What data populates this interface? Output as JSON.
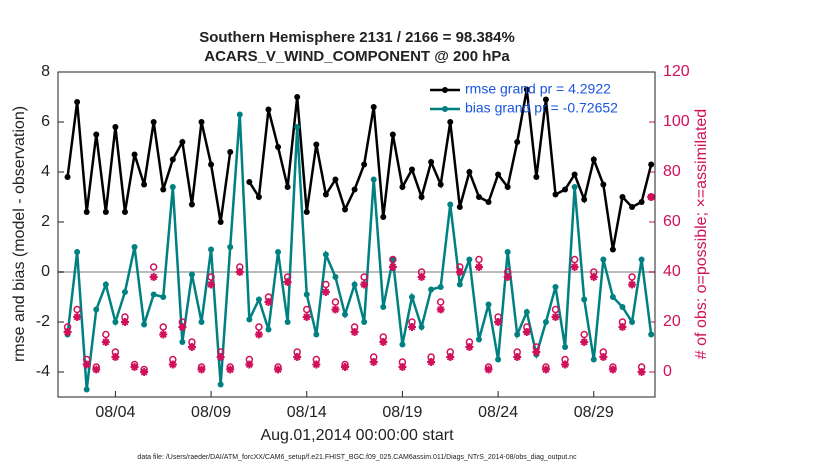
{
  "chart_data": {
    "type": "line",
    "title": "Southern Hemisphere 2131 / 2166 = 98.384%",
    "subtitle": "ACARS_V_WIND_COMPONENT @ 200 hPa",
    "xlabel": "Aug.01,2014 00:00:00 start",
    "ylabel": "rmse and bias (model - observation)",
    "y2label": "# of obs: o=possible; ×=assimilated",
    "footnote": "data file: /Users/raeder/DAI/ATM_forcXX/CAM6_setup/f.e21.FHIST_BGC.f09_025.CAM6assim.011/Diags_NTrS_2014-08/obs_diag_output.nc",
    "x": [
      0.5,
      1,
      1.5,
      2,
      2.5,
      3,
      3.5,
      4,
      4.5,
      5,
      5.5,
      6,
      6.5,
      7,
      7.5,
      8,
      8.5,
      9,
      9.5,
      10,
      10.5,
      11,
      11.5,
      12,
      12.5,
      13,
      13.5,
      14,
      14.5,
      15,
      15.5,
      16,
      16.5,
      17,
      17.5,
      18,
      18.5,
      19,
      19.5,
      20,
      20.5,
      21,
      21.5,
      22,
      22.5,
      23,
      23.5,
      24,
      24.5,
      25,
      25.5,
      26,
      26.5,
      27,
      27.5,
      28,
      28.5,
      29,
      29.5,
      30,
      30.5,
      31
    ],
    "xlim": [
      0,
      31.2
    ],
    "xticks": [
      {
        "value": 3,
        "label": "08/04"
      },
      {
        "value": 8,
        "label": "08/09"
      },
      {
        "value": 13,
        "label": "08/14"
      },
      {
        "value": 18,
        "label": "08/19"
      },
      {
        "value": 23,
        "label": "08/24"
      },
      {
        "value": 28,
        "label": "08/29"
      }
    ],
    "ylim": [
      -5,
      8
    ],
    "yticks": [
      -4,
      -2,
      0,
      2,
      4,
      6,
      8
    ],
    "y2lim": [
      -10,
      120
    ],
    "y2ticks": [
      0,
      20,
      40,
      60,
      80,
      100,
      120
    ],
    "legend": "upper right",
    "series": [
      {
        "name": "rmse grand pr = 4.2922",
        "color": "#000000",
        "marker": "dot",
        "values": [
          3.8,
          6.8,
          2.4,
          5.5,
          2.4,
          5.8,
          2.4,
          4.7,
          3.5,
          6.0,
          3.3,
          4.5,
          5.2,
          2.7,
          6.0,
          4.3,
          2.0,
          4.8,
          null,
          3.6,
          3.0,
          6.5,
          5.0,
          3.4,
          7.0,
          2.4,
          5.1,
          3.1,
          3.7,
          2.5,
          3.3,
          4.3,
          6.6,
          2.2,
          5.5,
          3.4,
          4.1,
          3.0,
          4.4,
          3.5,
          6.0,
          2.6,
          4.0,
          3.0,
          2.8,
          3.9,
          3.4,
          5.2,
          7.3,
          3.8,
          6.9,
          3.1,
          3.3,
          3.9,
          2.9,
          4.5,
          3.5,
          0.9,
          3.0,
          2.6,
          2.8,
          4.3
        ]
      },
      {
        "name": "bias grand pr = -0.72652",
        "color": "#008080",
        "marker": "dot",
        "values": [
          -2.5,
          0.8,
          -4.7,
          -1.5,
          -0.5,
          -2.0,
          -0.8,
          1.0,
          -2.1,
          -0.9,
          -1.0,
          3.4,
          -2.8,
          -0.1,
          -2.0,
          0.9,
          -4.5,
          1.0,
          6.3,
          -1.9,
          -1.1,
          -2.3,
          0.8,
          -2.0,
          5.8,
          -0.9,
          -2.5,
          0.7,
          -0.2,
          -1.7,
          -0.5,
          -2.0,
          3.7,
          -1.4,
          0.5,
          -2.9,
          -1.0,
          -2.2,
          -0.7,
          -0.6,
          2.7,
          -0.5,
          0.5,
          -2.7,
          -1.3,
          -3.5,
          0.8,
          -2.5,
          -1.6,
          -3.3,
          -2.0,
          -0.6,
          -3.0,
          3.4,
          -1.1,
          -3.5,
          0.5,
          -1.0,
          -1.4,
          -2.0,
          0.5,
          -2.5
        ]
      },
      {
        "color": "#d0105a",
        "marker": "circle",
        "axis": "y2",
        "values": [
          18,
          25,
          5,
          2,
          15,
          8,
          22,
          3,
          1,
          42,
          18,
          5,
          20,
          12,
          2,
          38,
          8,
          2,
          42,
          5,
          18,
          30,
          2,
          38,
          8,
          25,
          5,
          35,
          28,
          3,
          18,
          38,
          6,
          14,
          45,
          4,
          20,
          40,
          6,
          28,
          8,
          42,
          12,
          45,
          2,
          22,
          40,
          8,
          18,
          10,
          2,
          25,
          5,
          45,
          15,
          40,
          8,
          2,
          20,
          38,
          2,
          70
        ]
      },
      {
        "color": "#d0105a",
        "marker": "star",
        "axis": "y2",
        "values": [
          16,
          22,
          3,
          1,
          12,
          6,
          20,
          2,
          0,
          38,
          15,
          3,
          18,
          10,
          1,
          35,
          6,
          1,
          40,
          3,
          15,
          28,
          1,
          36,
          6,
          22,
          3,
          32,
          25,
          2,
          16,
          35,
          4,
          12,
          42,
          2,
          18,
          38,
          4,
          25,
          6,
          40,
          10,
          42,
          1,
          20,
          38,
          6,
          16,
          8,
          1,
          22,
          3,
          42,
          12,
          38,
          6,
          1,
          18,
          35,
          0,
          70
        ]
      }
    ]
  }
}
